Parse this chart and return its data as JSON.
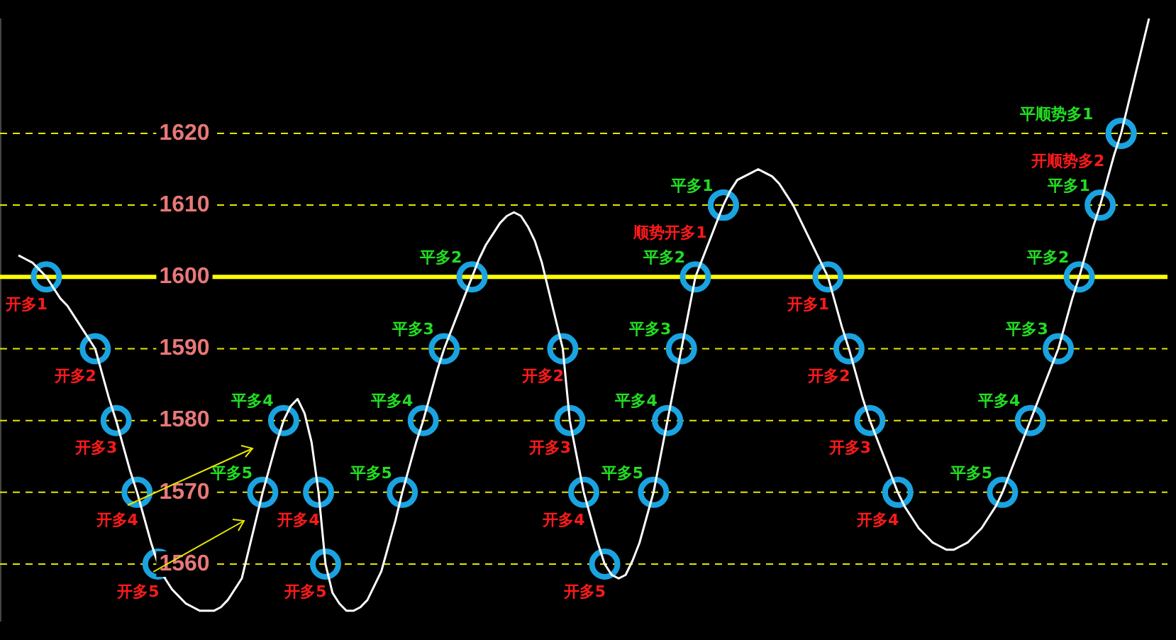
{
  "chart_data": {
    "type": "line",
    "categories": [
      null,
      null,
      null,
      null,
      null,
      null,
      null,
      null,
      null,
      null,
      null,
      null,
      null,
      null,
      null,
      null,
      null,
      null,
      null,
      null,
      null,
      null,
      null,
      null,
      null,
      null,
      null,
      null,
      null,
      null,
      null,
      null,
      null,
      null,
      null,
      null,
      null,
      null,
      null,
      null,
      null,
      null,
      null,
      null,
      null,
      null,
      null,
      null,
      null,
      null,
      null,
      null,
      null,
      null,
      null,
      null,
      null,
      null,
      null,
      null,
      null,
      null,
      null,
      null,
      null,
      null,
      null,
      null,
      null,
      null,
      null,
      null,
      null,
      null,
      null,
      null,
      null,
      null,
      null,
      null,
      null,
      null,
      null,
      null,
      null,
      null,
      null,
      null,
      null,
      null,
      null,
      null,
      null,
      null,
      null,
      null,
      null,
      null,
      null,
      null,
      null,
      null,
      null,
      null,
      null,
      null,
      null,
      null,
      null,
      null,
      null,
      null,
      null,
      null,
      null,
      null,
      null,
      null,
      null,
      null,
      null,
      null,
      null,
      null,
      null,
      null,
      null,
      null,
      null,
      null,
      null,
      null,
      null,
      null,
      null,
      null,
      null,
      null,
      null,
      null,
      null,
      null,
      null,
      null,
      null,
      null,
      null,
      null,
      null,
      null,
      null,
      null,
      null,
      null,
      null,
      null,
      null,
      null,
      null,
      null,
      null,
      null,
      null
    ],
    "ylim": [
      1552,
      1636
    ],
    "yticks": [
      1560,
      1570,
      1580,
      1590,
      1600,
      1610,
      1620
    ],
    "tick_labels": "y",
    "series": [
      {
        "color": "#ffffff",
        "marker": "none",
        "values": [
          1603,
          1602.5,
          1602,
          1601,
          1600,
          1598.5,
          1597,
          1596,
          1594.5,
          1593,
          1591.5,
          1590,
          1586.5,
          1583,
          1580,
          1576.5,
          1573,
          1570,
          1566.5,
          1563,
          1560,
          1558,
          1556.5,
          1555.5,
          1554.5,
          1554,
          1553.5,
          1553.5,
          1553.5,
          1554,
          1555,
          1556.5,
          1558,
          1562,
          1566,
          1570,
          1573.5,
          1577,
          1580,
          1582,
          1583,
          1581,
          1577,
          1570,
          1560,
          1556,
          1554.5,
          1553.5,
          1553.5,
          1554,
          1555,
          1557,
          1559,
          1562.5,
          1566,
          1570,
          1573.5,
          1577,
          1580,
          1583.5,
          1587,
          1590,
          1592.5,
          1595,
          1597.5,
          1600,
          1602.5,
          1604.5,
          1606,
          1607.5,
          1608.5,
          1609,
          1608.5,
          1607,
          1605,
          1602,
          1598,
          1594,
          1590,
          1580,
          1575,
          1570,
          1566.5,
          1563,
          1560,
          1558.5,
          1558,
          1558.5,
          1560.5,
          1563,
          1566.5,
          1570,
          1575,
          1580,
          1585,
          1590,
          1595,
          1600,
          1602.5,
          1605,
          1607.5,
          1610,
          1612,
          1613.5,
          1614,
          1614.5,
          1615,
          1614.5,
          1614,
          1613,
          1611.5,
          1610,
          1608,
          1606,
          1604,
          1602,
          1600,
          1596.5,
          1593,
          1590,
          1586.5,
          1583,
          1580,
          1577.5,
          1575,
          1572.5,
          1570,
          1568,
          1566.5,
          1565,
          1564,
          1563,
          1562.5,
          1562,
          1562,
          1562.5,
          1563,
          1564,
          1565,
          1566.5,
          1568,
          1570,
          1572.5,
          1575,
          1577.5,
          1580,
          1582.5,
          1585,
          1587.5,
          1590,
          1593.5,
          1597,
          1600,
          1603.5,
          1607,
          1610,
          1613.5,
          1617,
          1620,
          1624,
          1628,
          1632,
          1636
        ]
      },
      {
        "type": "scatter",
        "color": "#1aa3e0",
        "marker": "circle",
        "values": [
          null,
          null,
          null,
          null,
          1600,
          null,
          null,
          null,
          null,
          null,
          null,
          1590,
          null,
          null,
          1580,
          null,
          null,
          1570,
          null,
          null,
          1560,
          null,
          null,
          null,
          null,
          null,
          null,
          null,
          null,
          null,
          null,
          null,
          null,
          null,
          null,
          null,
          null,
          null,
          null,
          null,
          null,
          null,
          null,
          1570,
          1560,
          null,
          null,
          null,
          null,
          null,
          null,
          null,
          null,
          null,
          null,
          null,
          null,
          null,
          null,
          null,
          null,
          null,
          null,
          null,
          null,
          null,
          null,
          null,
          null,
          null,
          null,
          null,
          null,
          null,
          null,
          null,
          null,
          null,
          1590,
          1580,
          null,
          1570,
          null,
          null,
          1560,
          null,
          null,
          null,
          null,
          null,
          null,
          null,
          null,
          null,
          null,
          null,
          null,
          null,
          null,
          null,
          null,
          1610,
          null,
          null,
          null,
          null,
          null,
          null,
          null,
          null,
          null,
          null,
          null,
          null,
          null,
          null,
          1600,
          null,
          null,
          1590,
          null,
          null,
          1580,
          null,
          null,
          null,
          1570,
          null,
          null,
          null,
          null,
          null,
          null,
          null,
          null,
          null,
          null,
          null,
          null,
          null,
          null,
          null,
          null,
          null,
          null,
          null,
          null,
          null,
          null,
          null,
          null,
          null,
          null,
          null,
          null,
          null,
          null,
          null,
          1620,
          null,
          null,
          null,
          null
        ],
        "value_labels": [
          null,
          null,
          null,
          null,
          "开多1",
          null,
          null,
          null,
          null,
          null,
          null,
          "开多2",
          null,
          null,
          "开多3",
          null,
          null,
          "开多4",
          null,
          null,
          "开多5",
          null,
          null,
          null,
          null,
          null,
          null,
          null,
          null,
          null,
          null,
          null,
          null,
          null,
          null,
          null,
          null,
          null,
          null,
          null,
          null,
          null,
          null,
          "开多4",
          "开多5",
          null,
          null,
          null,
          null,
          null,
          null,
          null,
          null,
          null,
          null,
          null,
          null,
          null,
          null,
          null,
          null,
          null,
          null,
          null,
          null,
          null,
          null,
          null,
          null,
          null,
          null,
          null,
          null,
          null,
          null,
          null,
          null,
          null,
          "开多2",
          "开多3",
          null,
          "开多4",
          null,
          null,
          "开多5",
          null,
          null,
          null,
          null,
          null,
          null,
          null,
          null,
          null,
          null,
          null,
          null,
          null,
          null,
          null,
          null,
          "顺势开多1",
          null,
          null,
          null,
          null,
          null,
          null,
          null,
          null,
          null,
          null,
          null,
          null,
          null,
          null,
          "开多1",
          null,
          null,
          "开多2",
          null,
          null,
          "开多3",
          null,
          null,
          null,
          "开多4",
          null,
          null,
          null,
          null,
          null,
          null,
          null,
          null,
          null,
          null,
          null,
          null,
          null,
          null,
          null,
          null,
          null,
          null,
          null,
          null,
          null,
          null,
          null,
          null,
          null,
          null,
          null,
          null,
          null,
          null,
          null,
          "开顺势多2",
          null,
          null,
          null,
          null
        ]
      },
      {
        "type": "scatter",
        "color": "#1aa3e0",
        "marker": "circle",
        "values": [
          null,
          null,
          null,
          null,
          null,
          null,
          null,
          null,
          null,
          null,
          null,
          null,
          null,
          null,
          null,
          null,
          null,
          null,
          null,
          null,
          null,
          null,
          null,
          null,
          null,
          null,
          null,
          null,
          null,
          null,
          null,
          null,
          null,
          null,
          null,
          1570,
          null,
          null,
          1580,
          null,
          null,
          null,
          null,
          null,
          null,
          null,
          null,
          null,
          null,
          null,
          null,
          null,
          null,
          null,
          null,
          1570,
          null,
          null,
          1580,
          null,
          null,
          1590,
          null,
          null,
          null,
          1600,
          null,
          null,
          null,
          null,
          null,
          null,
          null,
          null,
          null,
          null,
          null,
          null,
          null,
          null,
          null,
          null,
          null,
          null,
          null,
          null,
          null,
          null,
          null,
          null,
          null,
          1570,
          null,
          1580,
          null,
          1590,
          null,
          1600,
          null,
          null,
          null,
          1610,
          null,
          null,
          null,
          null,
          null,
          null,
          null,
          null,
          null,
          null,
          null,
          null,
          null,
          null,
          null,
          null,
          null,
          null,
          null,
          null,
          null,
          null,
          null,
          null,
          null,
          null,
          null,
          null,
          null,
          null,
          null,
          null,
          null,
          null,
          null,
          null,
          null,
          null,
          null,
          1570,
          null,
          null,
          null,
          1580,
          null,
          null,
          null,
          1590,
          null,
          null,
          1600,
          null,
          null,
          1610,
          null,
          null,
          1620,
          null,
          null,
          null,
          null
        ],
        "value_labels": [
          null,
          null,
          null,
          null,
          null,
          null,
          null,
          null,
          null,
          null,
          null,
          null,
          null,
          null,
          null,
          null,
          null,
          null,
          null,
          null,
          null,
          null,
          null,
          null,
          null,
          null,
          null,
          null,
          null,
          null,
          null,
          null,
          null,
          null,
          null,
          "平多5",
          null,
          null,
          "平多4",
          null,
          null,
          null,
          null,
          null,
          null,
          null,
          null,
          null,
          null,
          null,
          null,
          null,
          null,
          null,
          null,
          "平多5",
          null,
          null,
          "平多4",
          null,
          null,
          "平多3",
          null,
          null,
          null,
          "平多2",
          null,
          null,
          null,
          null,
          null,
          null,
          null,
          null,
          null,
          null,
          null,
          null,
          null,
          null,
          null,
          null,
          null,
          null,
          null,
          null,
          null,
          null,
          null,
          null,
          null,
          "平多5",
          null,
          "平多4",
          null,
          "平多3",
          null,
          "平多2",
          null,
          null,
          null,
          "平多1",
          null,
          null,
          null,
          null,
          null,
          null,
          null,
          null,
          null,
          null,
          null,
          null,
          null,
          null,
          null,
          null,
          null,
          null,
          null,
          null,
          null,
          null,
          null,
          null,
          null,
          null,
          null,
          null,
          null,
          null,
          null,
          null,
          null,
          null,
          null,
          null,
          null,
          null,
          null,
          "平多5",
          null,
          null,
          null,
          "平多4",
          null,
          null,
          null,
          "平多3",
          null,
          null,
          "平多2",
          null,
          null,
          "平多1",
          null,
          null,
          "平顺势多1",
          null,
          null,
          null,
          null
        ]
      }
    ],
    "ref_lines": [
      {
        "axis": "y",
        "value": 1620,
        "color": "#e6e600",
        "line_style": "dashed"
      },
      {
        "axis": "y",
        "value": 1610,
        "color": "#e6e600",
        "line_style": "dashed"
      },
      {
        "axis": "y",
        "value": 1600,
        "color": "#ffff00",
        "line_style": "solid"
      },
      {
        "axis": "y",
        "value": 1590,
        "color": "#e6e600",
        "line_style": "dashed"
      },
      {
        "axis": "y",
        "value": 1580,
        "color": "#e6e600",
        "line_style": "dashed"
      },
      {
        "axis": "y",
        "value": 1570,
        "color": "#e6e600",
        "line_style": "dashed"
      },
      {
        "axis": "y",
        "value": 1560,
        "color": "#e6e600",
        "line_style": "dashed"
      }
    ]
  }
}
